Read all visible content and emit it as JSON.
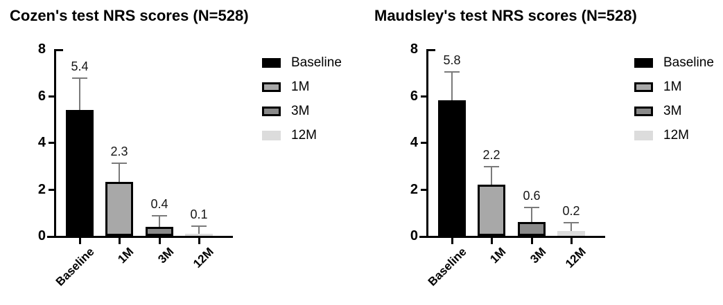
{
  "chart_data": [
    {
      "type": "bar",
      "title": "Cozen's test NRS scores (N=528)",
      "categories": [
        "Baseline",
        "1M",
        "3M",
        "12M"
      ],
      "values": [
        5.4,
        2.3,
        0.4,
        0.1
      ],
      "value_labels": [
        "5.4",
        "2.3",
        "0.4",
        "0.1"
      ],
      "errors_plus": [
        1.4,
        0.85,
        0.5,
        0.35
      ],
      "ylim": [
        0,
        8
      ],
      "yticks": [
        0,
        2,
        4,
        6,
        8
      ],
      "legend": [
        "Baseline",
        "1M",
        "3M",
        "12M"
      ],
      "bar_colors": [
        "#000000",
        "#a8a8a8",
        "#8a8a8a",
        "#dcdcdc"
      ],
      "bar_borders": [
        "#000000",
        "#000000",
        "#000000",
        "none"
      ],
      "error_color": "#7a7a7a",
      "axis_color": "#000000",
      "legend_position": "right",
      "grid": false
    },
    {
      "type": "bar",
      "title": "Maudsley's test NRS scores (N=528)",
      "categories": [
        "Baseline",
        "1M",
        "3M",
        "12M"
      ],
      "values": [
        5.8,
        2.2,
        0.6,
        0.2
      ],
      "value_labels": [
        "5.8",
        "2.2",
        "0.6",
        "0.2"
      ],
      "errors_plus": [
        1.25,
        0.8,
        0.65,
        0.4
      ],
      "ylim": [
        0,
        8
      ],
      "yticks": [
        0,
        2,
        4,
        6,
        8
      ],
      "legend": [
        "Baseline",
        "1M",
        "3M",
        "12M"
      ],
      "bar_colors": [
        "#000000",
        "#a8a8a8",
        "#8a8a8a",
        "#dcdcdc"
      ],
      "bar_borders": [
        "#000000",
        "#000000",
        "#000000",
        "none"
      ],
      "error_color": "#7a7a7a",
      "axis_color": "#000000",
      "legend_position": "right",
      "grid": false
    }
  ]
}
